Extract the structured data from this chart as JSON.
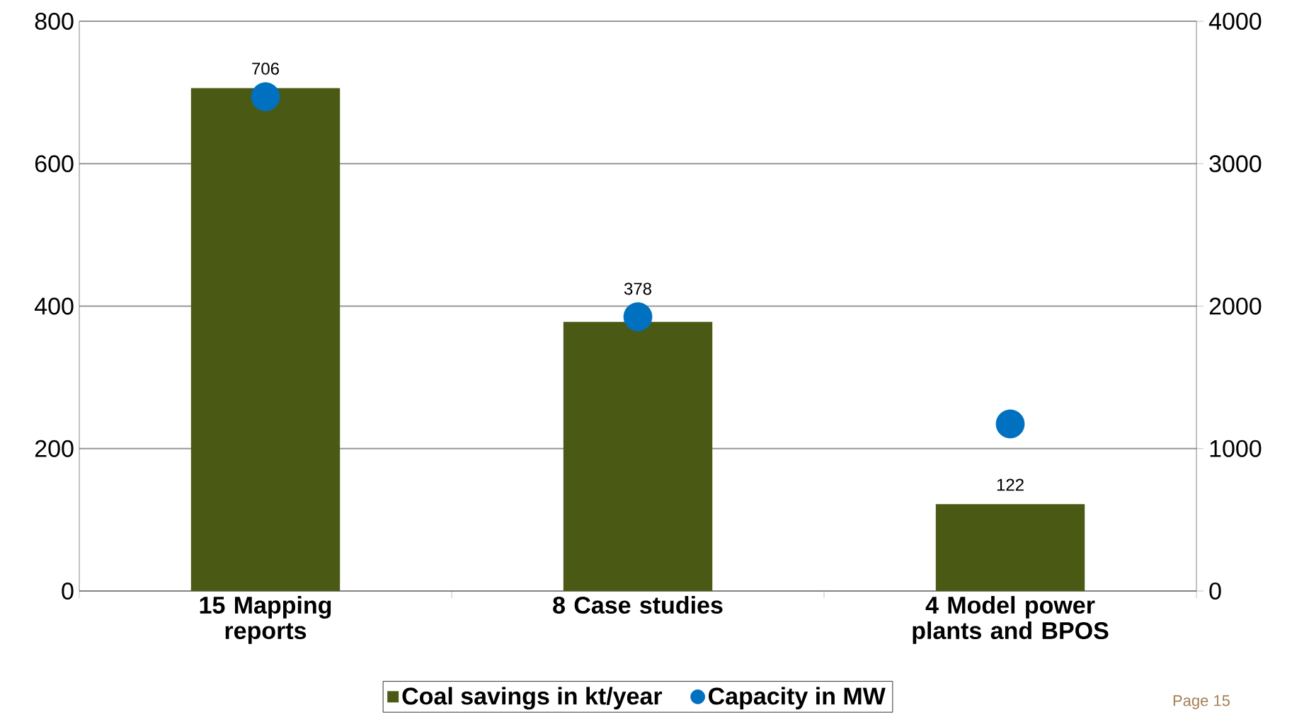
{
  "chart_data": {
    "type": "bar",
    "categories": [
      "15 Mapping reports",
      "8 Case studies",
      "4 Model power plants and BPOS"
    ],
    "series": [
      {
        "name": "Coal savings in kt/year",
        "color": "#4a5a14",
        "values": [
          706,
          378,
          122
        ],
        "value_labels": [
          "706",
          "378",
          "122"
        ]
      },
      {
        "name": "Capacity in MW",
        "type": "scatter",
        "axis": "y2",
        "color": "#0070c0",
        "marker": "circle",
        "values": [
          3470,
          1925,
          1173
        ]
      }
    ],
    "ylim": [
      0,
      800
    ],
    "yticks": [
      0,
      200,
      400,
      600,
      800
    ],
    "y2lim": [
      0,
      4000
    ],
    "y2ticks": [
      0,
      1000,
      2000,
      3000,
      4000
    ],
    "grid": "y",
    "legend": "bottom",
    "annotations": [
      "Page 15"
    ]
  }
}
